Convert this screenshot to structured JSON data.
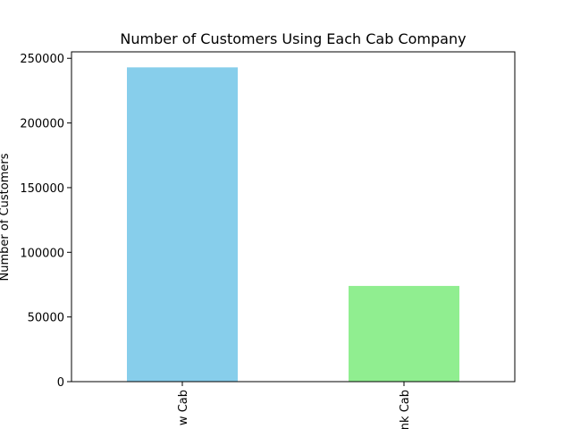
{
  "chart_data": {
    "type": "bar",
    "title": "Number of Customers Using Each Cab Company",
    "xlabel": "",
    "ylabel": "Number of Customers",
    "categories": [
      "Yellow Cab",
      "Pink Cab"
    ],
    "visible_category_labels": [
      "w Cab",
      "nk Cab"
    ],
    "values": [
      243000,
      74000
    ],
    "colors": [
      "#87CEEB",
      "#90EE90"
    ],
    "ylim": [
      0,
      255000
    ],
    "yticks": [
      0,
      50000,
      100000,
      150000,
      200000,
      250000
    ],
    "ytick_labels": [
      "0",
      "50000",
      "100000",
      "150000",
      "200000",
      "250000"
    ],
    "grid": false,
    "legend": "none"
  }
}
